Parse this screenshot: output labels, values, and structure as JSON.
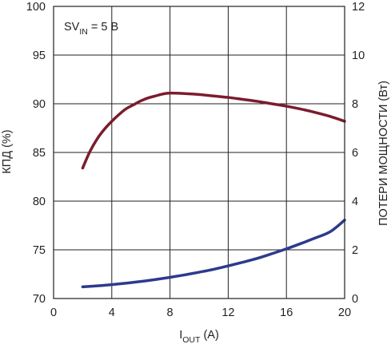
{
  "chart_data": {
    "type": "line",
    "annotation": {
      "main": "SV",
      "sub": "IN",
      "rest": " = 5 В"
    },
    "xlabel": {
      "main": "I",
      "sub": "OUT",
      "rest": " (A)"
    },
    "ylabel_left": "КПД (%)",
    "ylabel_right": "ПОТЕРИ МОЩНОСТИ (Вт)",
    "x_ticks": [
      "0",
      "4",
      "8",
      "12",
      "16",
      "20"
    ],
    "y_left_ticks": [
      "70",
      "75",
      "80",
      "85",
      "90",
      "95",
      "100"
    ],
    "y_right_ticks": [
      "0",
      "2",
      "4",
      "6",
      "8",
      "10",
      "12"
    ],
    "xlim": [
      0,
      20
    ],
    "ylim_left": [
      70,
      100
    ],
    "ylim_right": [
      0,
      12
    ],
    "grid": true,
    "series": [
      {
        "axis": "left",
        "color": "#7b1c2e",
        "x": [
          2,
          2.5,
          3,
          3.5,
          4,
          4.5,
          5,
          5.5,
          6,
          6.5,
          7,
          7.5,
          8,
          9,
          10,
          11,
          12,
          13,
          14,
          15,
          16,
          17,
          18,
          19,
          20
        ],
        "values": [
          83.4,
          85.1,
          86.4,
          87.4,
          88.2,
          88.9,
          89.5,
          89.9,
          90.3,
          90.6,
          90.8,
          91.0,
          91.1,
          91.05,
          90.95,
          90.8,
          90.65,
          90.45,
          90.25,
          90.0,
          89.75,
          89.45,
          89.1,
          88.7,
          88.2
        ]
      },
      {
        "axis": "right",
        "color": "#2e3a8c",
        "x": [
          2,
          3,
          4,
          5,
          6,
          7,
          8,
          9,
          10,
          11,
          12,
          13,
          14,
          15,
          16,
          17,
          18,
          19,
          20
        ],
        "values": [
          0.48,
          0.52,
          0.57,
          0.63,
          0.7,
          0.78,
          0.87,
          0.97,
          1.08,
          1.2,
          1.34,
          1.49,
          1.65,
          1.84,
          2.04,
          2.26,
          2.49,
          2.74,
          3.22
        ]
      }
    ]
  }
}
